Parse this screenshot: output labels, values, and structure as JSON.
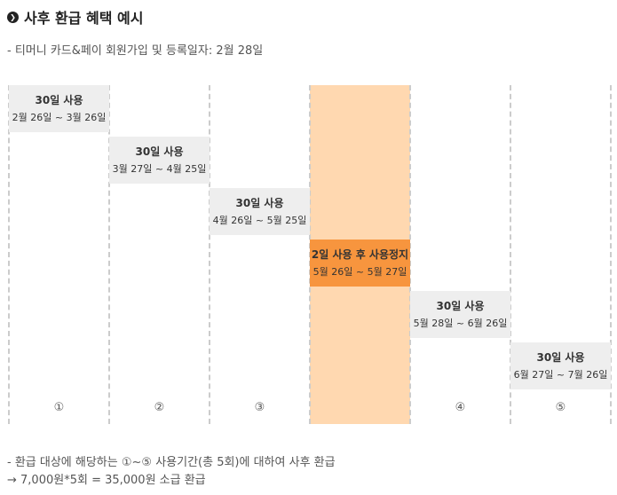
{
  "header": {
    "title": "사후 환급 혜택 예시",
    "bullet_glyph": "❯",
    "subtitle": "- 티머니 카드&페이 회원가입 및 등록일자: 2월 28일"
  },
  "timeline": {
    "periods": [
      {
        "label": "30일 사용",
        "dates": "2월 26일 ~ 3월 26일"
      },
      {
        "label": "30일 사용",
        "dates": "3월 27일 ~ 4월 25일"
      },
      {
        "label": "30일 사용",
        "dates": "4월 26일 ~ 5월 25일"
      },
      {
        "label": "2일 사용 후 사용정지",
        "dates": "5월 26일 ~ 5월 27일"
      },
      {
        "label": "30일 사용",
        "dates": "5월 28일 ~ 6월 26일"
      },
      {
        "label": "30일 사용",
        "dates": "6월 27일 ~ 7월 26일"
      }
    ],
    "column_numbers": [
      "①",
      "②",
      "③",
      "",
      "④",
      "⑤"
    ],
    "highlight_color": "#ffd8b0",
    "suspend_color": "#f7953e",
    "period_bg_color": "#eeeeee"
  },
  "footer": {
    "note1": "- 환급 대상에 해당하는 ①~⑤ 사용기간(총 5회)에 대하여 사후 환급",
    "note2": "→ 7,000원*5회 = 35,000원 소급 환급"
  }
}
